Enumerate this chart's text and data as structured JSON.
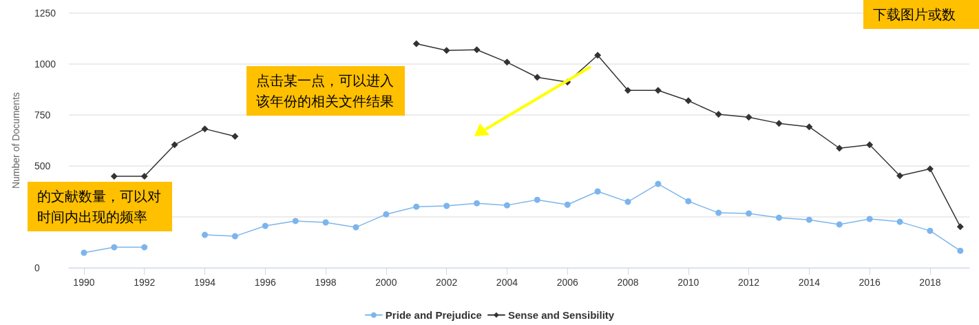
{
  "chart_data": {
    "type": "line",
    "ylabel": "Number of Documents",
    "x": [
      1990,
      1991,
      1992,
      1993,
      1994,
      1995,
      1996,
      1997,
      1998,
      1999,
      2000,
      2001,
      2002,
      2003,
      2004,
      2005,
      2006,
      2007,
      2008,
      2009,
      2010,
      2011,
      2012,
      2013,
      2014,
      2015,
      2016,
      2017,
      2018,
      2019
    ],
    "series": [
      {
        "name": "Pride and Prejudice",
        "color": "#7cb5ec",
        "marker": "circle",
        "values": [
          74,
          101,
          101,
          null,
          162,
          155,
          206,
          230,
          223,
          199,
          263,
          300,
          304,
          317,
          307,
          334,
          310,
          375,
          324,
          412,
          327,
          270,
          267,
          246,
          236,
          213,
          240,
          226,
          182,
          84
        ]
      },
      {
        "name": "Sense and Sensibility",
        "color": "#333333",
        "marker": "diamond",
        "values": [
          null,
          449,
          449,
          604,
          682,
          645,
          null,
          null,
          null,
          null,
          null,
          1100,
          1067,
          1070,
          1009,
          935,
          911,
          1043,
          871,
          871,
          820,
          753,
          739,
          709,
          692,
          587,
          604,
          452,
          486,
          202
        ]
      }
    ],
    "xlim": [
      1989.5,
      2019.3
    ],
    "xticks": [
      1990,
      1992,
      1994,
      1996,
      1998,
      2000,
      2002,
      2004,
      2006,
      2008,
      2010,
      2012,
      2014,
      2016,
      2018
    ],
    "ylim": [
      0,
      1250
    ],
    "yticks": [
      0,
      {
        "value": 250,
        "label": null
      },
      500,
      750,
      1000,
      1250
    ],
    "grid": "y",
    "legend": "bottom",
    "line_style": "solid",
    "annotations": [
      "下载图片或数",
      "点击某一点，可以进入该年份的相关文件结果",
      "的文献数量，可以对时间内出现的频率"
    ]
  }
}
